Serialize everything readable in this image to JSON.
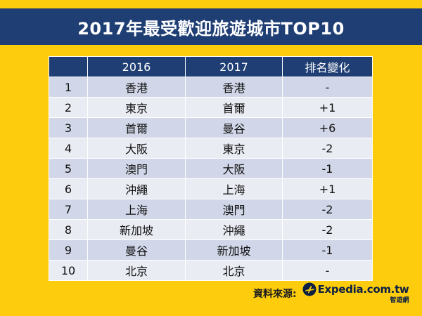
{
  "title": "2017年最受歡迎旅遊城市TOP10",
  "table": {
    "headers": [
      "",
      "2016",
      "2017",
      "排名變化"
    ],
    "rows": [
      [
        "1",
        "香港",
        "香港",
        "-"
      ],
      [
        "2",
        "東京",
        "首爾",
        "+1"
      ],
      [
        "3",
        "首爾",
        "曼谷",
        "+6"
      ],
      [
        "4",
        "大阪",
        "東京",
        "-2"
      ],
      [
        "5",
        "澳門",
        "大阪",
        "-1"
      ],
      [
        "6",
        "沖繩",
        "上海",
        "+1"
      ],
      [
        "7",
        "上海",
        "澳門",
        "-2"
      ],
      [
        "8",
        "新加坡",
        "沖繩",
        "-2"
      ],
      [
        "9",
        "曼谷",
        "新加坡",
        "-1"
      ],
      [
        "10",
        "北京",
        "北京",
        "-"
      ]
    ]
  },
  "source": {
    "label": "資料來源:",
    "logo_text": "Expedia.com.tw",
    "logo_sub": "智遊網",
    "logo_icon": "plane-globe-icon"
  },
  "colors": {
    "background": "#FDCC0D",
    "navy": "#1F3E73",
    "row_odd": "#D1D7E8",
    "row_even": "#EAECF4"
  }
}
